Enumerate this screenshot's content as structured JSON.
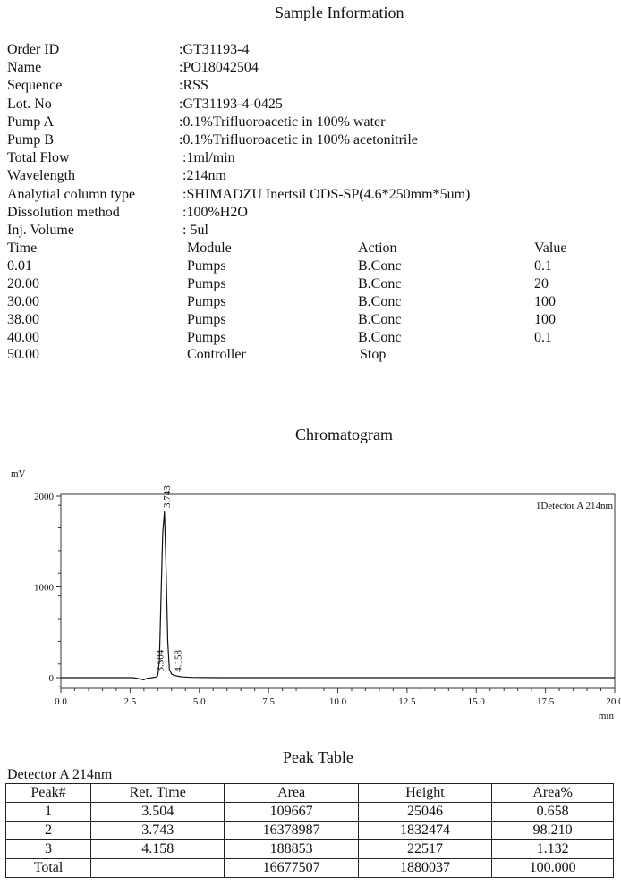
{
  "sample_info": {
    "title": "Sample Information",
    "rows": [
      {
        "label": "Order  ID",
        "value": ":GT31193-4"
      },
      {
        "label": "Name",
        "value": ":PO18042504"
      },
      {
        "label": "Sequence",
        "value": ":RSS"
      },
      {
        "label": "Lot. No",
        "value": ":GT31193-4-0425"
      },
      {
        "label": "Pump A",
        "value": ":0.1%Trifluoroacetic in 100% water"
      },
      {
        "label": "Pump B",
        "value": ":0.1%Trifluoroacetic in 100% acetonitrile"
      },
      {
        "label": "Total Flow",
        "value": ":1ml/min"
      },
      {
        "label": "Wavelength",
        "value": ":214nm"
      },
      {
        "label": "Analytial column type",
        "value": ":SHIMADZU Inertsil ODS-SP(4.6*250mm*5um)"
      },
      {
        "label": "Dissolution method",
        "value": ":100%H2O"
      },
      {
        "label": "Inj. Volume",
        "value": ": 5ul"
      }
    ]
  },
  "program": {
    "headers": [
      "Time",
      "Module",
      "Action",
      "Value"
    ],
    "rows": [
      [
        "0.01",
        "Pumps",
        "B.Conc",
        "0.1"
      ],
      [
        "20.00",
        "Pumps",
        "B.Conc",
        "20"
      ],
      [
        "30.00",
        "Pumps",
        "B.Conc",
        "100"
      ],
      [
        "38.00",
        "Pumps",
        "B.Conc",
        "100"
      ],
      [
        "40.00",
        "Pumps",
        "B.Conc",
        "0.1"
      ],
      [
        "50.00",
        "Controller",
        "Stop",
        ""
      ]
    ]
  },
  "chart_data": {
    "type": "line",
    "title": "Chromatogram",
    "ylabel": "mV",
    "xlabel": "min",
    "xlim": [
      0,
      20
    ],
    "ylim": [
      -100,
      2000
    ],
    "x_ticks": [
      "0.0",
      "2.5",
      "5.0",
      "7.5",
      "10.0",
      "12.5",
      "15.0",
      "17.5",
      "20.0"
    ],
    "y_ticks": [
      "0",
      "1000",
      "2000"
    ],
    "legend": "1Detector A 214nm",
    "grid": false,
    "series": [
      {
        "name": "1Detector A 214nm",
        "color": "#111111",
        "x": [
          0,
          2.6,
          2.8,
          3.0,
          3.1,
          3.3,
          3.45,
          3.504,
          3.56,
          3.62,
          3.68,
          3.743,
          3.8,
          3.86,
          3.92,
          4.0,
          4.1,
          4.158,
          4.25,
          4.4,
          4.7,
          5.2,
          6,
          10,
          20
        ],
        "y": [
          0,
          0,
          -10,
          -25,
          -8,
          0,
          8,
          25,
          200,
          900,
          1600,
          1832,
          1200,
          400,
          90,
          40,
          25,
          22,
          15,
          8,
          3,
          1,
          0,
          0,
          0
        ]
      }
    ],
    "peak_labels": [
      {
        "x": 3.504,
        "y": 25,
        "label": "3.504"
      },
      {
        "x": 3.743,
        "y": 1832,
        "label": "3.743"
      },
      {
        "x": 4.158,
        "y": 22,
        "label": "4.158"
      }
    ]
  },
  "peak_table": {
    "title": "Peak Table",
    "detector": "Detector A 214nm",
    "headers": [
      "Peak#",
      "Ret. Time",
      "Area",
      "Height",
      "Area%"
    ],
    "rows": [
      [
        "1",
        "3.504",
        "109667",
        "25046",
        "0.658"
      ],
      [
        "2",
        "3.743",
        "16378987",
        "1832474",
        "98.210"
      ],
      [
        "3",
        "4.158",
        "188853",
        "22517",
        "1.132"
      ]
    ],
    "total": [
      "Total",
      "",
      "16677507",
      "1880037",
      "100.000"
    ]
  }
}
